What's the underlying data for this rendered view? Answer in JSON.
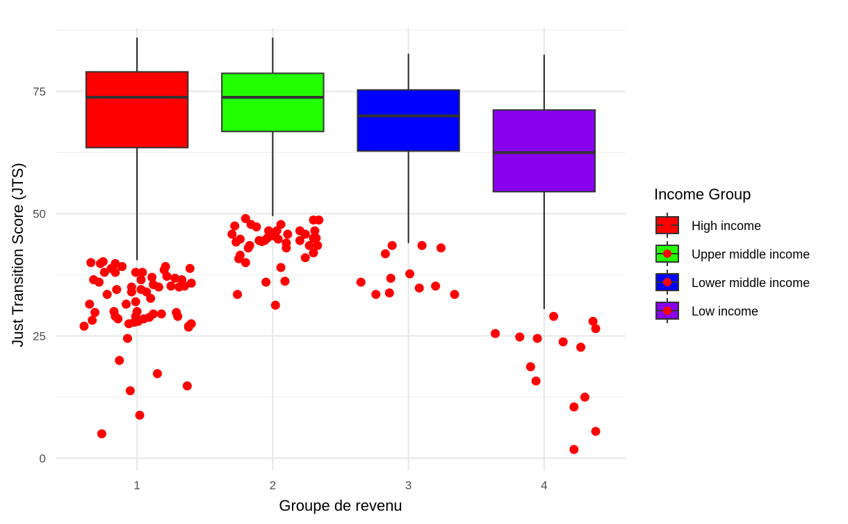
{
  "chart_data": {
    "type": "box",
    "xlabel": "Groupe de revenu",
    "ylabel": "Just Transition Score (JTS)",
    "ylim": [
      -2.5,
      88
    ],
    "y_ticks": [
      0,
      25,
      50,
      75
    ],
    "grid": true,
    "legend": {
      "title": "Income Group",
      "placement": "right",
      "entries": [
        {
          "label": "High income",
          "color": "#FF0000"
        },
        {
          "label": "Upper middle income",
          "color": "#22FF00"
        },
        {
          "label": "Lower middle income",
          "color": "#0000FF"
        },
        {
          "label": "Low income",
          "color": "#8800EE"
        }
      ]
    },
    "categories": [
      "1",
      "2",
      "3",
      "4"
    ],
    "boxes": [
      {
        "category": "1",
        "min": 40.5,
        "q1": 63.5,
        "median": 73.8,
        "q3": 79,
        "max": 86,
        "color": "#FF0000"
      },
      {
        "category": "2",
        "min": 49.5,
        "q1": 66.8,
        "median": 73.8,
        "q3": 78.7,
        "max": 86,
        "color": "#22FF00"
      },
      {
        "category": "3",
        "min": 44,
        "q1": 62.8,
        "median": 70,
        "q3": 75.3,
        "max": 82.7,
        "color": "#0000FF"
      },
      {
        "category": "4",
        "min": 30.5,
        "q1": 54.5,
        "median": 62.5,
        "q3": 71.2,
        "max": 82.5,
        "color": "#8800EE"
      }
    ],
    "points_color": "#FF0000",
    "points": [
      {
        "x": 0.61,
        "y": 27
      },
      {
        "x": 0.65,
        "y": 31.5
      },
      {
        "x": 0.66,
        "y": 40
      },
      {
        "x": 0.67,
        "y": 28.2
      },
      {
        "x": 0.68,
        "y": 36.5
      },
      {
        "x": 0.69,
        "y": 29.8
      },
      {
        "x": 0.72,
        "y": 36
      },
      {
        "x": 0.73,
        "y": 39.8
      },
      {
        "x": 0.75,
        "y": 40.2
      },
      {
        "x": 0.76,
        "y": 38
      },
      {
        "x": 0.74,
        "y": 5
      },
      {
        "x": 0.78,
        "y": 33.5
      },
      {
        "x": 0.81,
        "y": 38.8
      },
      {
        "x": 0.83,
        "y": 30
      },
      {
        "x": 0.84,
        "y": 29
      },
      {
        "x": 0.84,
        "y": 38
      },
      {
        "x": 0.84,
        "y": 39.8
      },
      {
        "x": 0.85,
        "y": 34.5
      },
      {
        "x": 0.86,
        "y": 28.5
      },
      {
        "x": 0.87,
        "y": 20
      },
      {
        "x": 0.89,
        "y": 39.2
      },
      {
        "x": 0.92,
        "y": 31.5
      },
      {
        "x": 0.93,
        "y": 24.5
      },
      {
        "x": 0.94,
        "y": 27.5
      },
      {
        "x": 0.95,
        "y": 13.8
      },
      {
        "x": 0.96,
        "y": 35
      },
      {
        "x": 0.96,
        "y": 34
      },
      {
        "x": 0.98,
        "y": 27.8
      },
      {
        "x": 0.99,
        "y": 32
      },
      {
        "x": 0.99,
        "y": 29
      },
      {
        "x": 0.99,
        "y": 38
      },
      {
        "x": 1.0,
        "y": 30
      },
      {
        "x": 1.01,
        "y": 28
      },
      {
        "x": 1.02,
        "y": 8.8
      },
      {
        "x": 1.03,
        "y": 36.5
      },
      {
        "x": 1.03,
        "y": 34.5
      },
      {
        "x": 1.04,
        "y": 38
      },
      {
        "x": 1.05,
        "y": 28.5
      },
      {
        "x": 1.07,
        "y": 34
      },
      {
        "x": 1.09,
        "y": 28.8
      },
      {
        "x": 1.1,
        "y": 32.7
      },
      {
        "x": 1.11,
        "y": 37
      },
      {
        "x": 1.12,
        "y": 35.5
      },
      {
        "x": 1.12,
        "y": 29.5
      },
      {
        "x": 1.15,
        "y": 17.3
      },
      {
        "x": 1.16,
        "y": 35
      },
      {
        "x": 1.18,
        "y": 29.5
      },
      {
        "x": 1.2,
        "y": 38.5
      },
      {
        "x": 1.21,
        "y": 39.2
      },
      {
        "x": 1.22,
        "y": 37.2
      },
      {
        "x": 1.25,
        "y": 35.2
      },
      {
        "x": 1.28,
        "y": 36.8
      },
      {
        "x": 1.29,
        "y": 29.8
      },
      {
        "x": 1.3,
        "y": 29
      },
      {
        "x": 1.31,
        "y": 35
      },
      {
        "x": 1.33,
        "y": 36.5
      },
      {
        "x": 1.35,
        "y": 35.2
      },
      {
        "x": 1.37,
        "y": 14.8
      },
      {
        "x": 1.38,
        "y": 27
      },
      {
        "x": 1.38,
        "y": 26.8
      },
      {
        "x": 1.39,
        "y": 38.8
      },
      {
        "x": 1.4,
        "y": 35.8
      },
      {
        "x": 1.4,
        "y": 27.5
      },
      {
        "x": 1.7,
        "y": 45.8
      },
      {
        "x": 1.72,
        "y": 47.5
      },
      {
        "x": 1.73,
        "y": 44.2
      },
      {
        "x": 1.74,
        "y": 33.5
      },
      {
        "x": 1.75,
        "y": 40.8
      },
      {
        "x": 1.76,
        "y": 41.5
      },
      {
        "x": 1.76,
        "y": 44.8
      },
      {
        "x": 1.8,
        "y": 40
      },
      {
        "x": 1.8,
        "y": 49
      },
      {
        "x": 1.82,
        "y": 43
      },
      {
        "x": 1.83,
        "y": 43.5
      },
      {
        "x": 1.84,
        "y": 47.8
      },
      {
        "x": 1.88,
        "y": 47.3
      },
      {
        "x": 1.9,
        "y": 44.5
      },
      {
        "x": 1.92,
        "y": 44.3
      },
      {
        "x": 1.94,
        "y": 44.5
      },
      {
        "x": 1.95,
        "y": 36
      },
      {
        "x": 1.96,
        "y": 45
      },
      {
        "x": 1.97,
        "y": 46.5
      },
      {
        "x": 2.0,
        "y": 45.5
      },
      {
        "x": 2.02,
        "y": 31.3
      },
      {
        "x": 2.03,
        "y": 46.5
      },
      {
        "x": 2.04,
        "y": 44.8
      },
      {
        "x": 2.06,
        "y": 47.8
      },
      {
        "x": 2.06,
        "y": 39
      },
      {
        "x": 2.09,
        "y": 36.2
      },
      {
        "x": 2.1,
        "y": 43
      },
      {
        "x": 2.1,
        "y": 44
      },
      {
        "x": 2.11,
        "y": 45.8
      },
      {
        "x": 2.2,
        "y": 46.5
      },
      {
        "x": 2.2,
        "y": 44.5
      },
      {
        "x": 2.24,
        "y": 45.8
      },
      {
        "x": 2.24,
        "y": 41
      },
      {
        "x": 2.27,
        "y": 43.5
      },
      {
        "x": 2.3,
        "y": 42
      },
      {
        "x": 2.3,
        "y": 45
      },
      {
        "x": 2.3,
        "y": 48.7
      },
      {
        "x": 2.31,
        "y": 46.5
      },
      {
        "x": 2.32,
        "y": 45
      },
      {
        "x": 2.33,
        "y": 43.5
      },
      {
        "x": 2.34,
        "y": 48.7
      },
      {
        "x": 2.65,
        "y": 36
      },
      {
        "x": 2.76,
        "y": 33.5
      },
      {
        "x": 2.83,
        "y": 41.8
      },
      {
        "x": 2.86,
        "y": 33.8
      },
      {
        "x": 2.87,
        "y": 36.8
      },
      {
        "x": 2.88,
        "y": 43.5
      },
      {
        "x": 3.01,
        "y": 37.7
      },
      {
        "x": 3.08,
        "y": 34.8
      },
      {
        "x": 3.1,
        "y": 43.5
      },
      {
        "x": 3.2,
        "y": 35.2
      },
      {
        "x": 3.24,
        "y": 43
      },
      {
        "x": 3.34,
        "y": 33.5
      },
      {
        "x": 3.64,
        "y": 25.5
      },
      {
        "x": 3.82,
        "y": 24.8
      },
      {
        "x": 3.9,
        "y": 18.7
      },
      {
        "x": 3.94,
        "y": 15.8
      },
      {
        "x": 3.95,
        "y": 24.5
      },
      {
        "x": 4.07,
        "y": 29
      },
      {
        "x": 4.14,
        "y": 23.8
      },
      {
        "x": 4.22,
        "y": 10.5
      },
      {
        "x": 4.22,
        "y": 1.8
      },
      {
        "x": 4.27,
        "y": 22.7
      },
      {
        "x": 4.3,
        "y": 12.5
      },
      {
        "x": 4.36,
        "y": 28
      },
      {
        "x": 4.38,
        "y": 5.5
      },
      {
        "x": 4.38,
        "y": 26.5
      }
    ]
  }
}
